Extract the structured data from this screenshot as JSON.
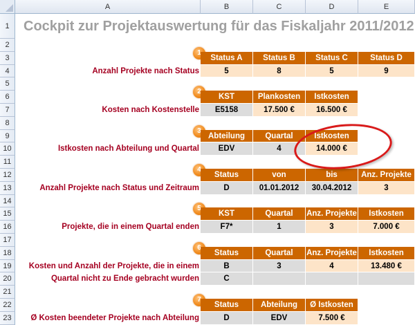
{
  "columns": [
    "A",
    "B",
    "C",
    "D",
    "E"
  ],
  "row_numbers": [
    "1",
    "2",
    "3",
    "4",
    "5",
    "6",
    "7",
    "8",
    "9",
    "10",
    "11",
    "12",
    "13",
    "14",
    "15",
    "16",
    "17",
    "18",
    "19",
    "20",
    "21",
    "22",
    "23"
  ],
  "title": "Cockpit zur Projektauswertung für das Fiskaljahr 2011/2012",
  "highlight_color": "#d91a1a",
  "sections": [
    {
      "badge": "1",
      "header_row": 3,
      "headers": [
        "Status A",
        "Status B",
        "Status C",
        "Status D"
      ],
      "rows": [
        {
          "row": 4,
          "label": "Anzahl  Projekte nach Status",
          "cells": [
            {
              "text": "5",
              "kind": "value"
            },
            {
              "text": "8",
              "kind": "value"
            },
            {
              "text": "5",
              "kind": "value"
            },
            {
              "text": "9",
              "kind": "value"
            }
          ]
        }
      ]
    },
    {
      "badge": "2",
      "header_row": 6,
      "headers": [
        "KST",
        "Plankosten",
        "Istkosten"
      ],
      "rows": [
        {
          "row": 7,
          "label": "Kosten nach Kostenstelle",
          "cells": [
            {
              "text": "E5158",
              "kind": "input"
            },
            {
              "text": "17.500 €",
              "kind": "value"
            },
            {
              "text": "16.500 €",
              "kind": "value"
            }
          ]
        }
      ]
    },
    {
      "badge": "3",
      "header_row": 9,
      "headers": [
        "Abteilung",
        "Quartal",
        "Istkosten"
      ],
      "rows": [
        {
          "row": 10,
          "label": "Istkosten nach Abteilung und Quartal",
          "cells": [
            {
              "text": "EDV",
              "kind": "input"
            },
            {
              "text": "4",
              "kind": "input"
            },
            {
              "text": "14.000 €",
              "kind": "value"
            }
          ]
        }
      ]
    },
    {
      "badge": "4",
      "header_row": 12,
      "headers": [
        "Status",
        "von",
        "bis",
        "Anz. Projekte"
      ],
      "rows": [
        {
          "row": 13,
          "label": "Anzahl Projekte nach Status und Zeitraum",
          "cells": [
            {
              "text": "D",
              "kind": "input"
            },
            {
              "text": "01.01.2012",
              "kind": "input"
            },
            {
              "text": "30.04.2012",
              "kind": "input"
            },
            {
              "text": "3",
              "kind": "value"
            }
          ]
        }
      ]
    },
    {
      "badge": "5",
      "header_row": 15,
      "headers": [
        "KST",
        "Quartal",
        "Anz. Projekte",
        "Istkosten"
      ],
      "rows": [
        {
          "row": 16,
          "label": "Projekte, die in einem Quartal enden",
          "cells": [
            {
              "text": "F7*",
              "kind": "input"
            },
            {
              "text": "1",
              "kind": "input"
            },
            {
              "text": "3",
              "kind": "value"
            },
            {
              "text": "7.000 €",
              "kind": "value"
            }
          ]
        }
      ]
    },
    {
      "badge": "6",
      "header_row": 18,
      "headers": [
        "Status",
        "Quartal",
        "Anz. Projekte",
        "Istkosten"
      ],
      "rows": [
        {
          "row": 19,
          "label": "Kosten und Anzahl der Projekte, die in einem",
          "cells": [
            {
              "text": "B",
              "kind": "input"
            },
            {
              "text": "3",
              "kind": "input"
            },
            {
              "text": "4",
              "kind": "value"
            },
            {
              "text": "13.480 €",
              "kind": "value"
            }
          ]
        },
        {
          "row": 20,
          "label": "Quartal nicht zu Ende gebracht wurden",
          "cells": [
            {
              "text": "C",
              "kind": "input"
            },
            {
              "text": "",
              "kind": "input"
            },
            {
              "text": "",
              "kind": "input"
            },
            {
              "text": "",
              "kind": "input"
            }
          ]
        }
      ]
    },
    {
      "badge": "7",
      "header_row": 22,
      "headers": [
        "Status",
        "Abteilung",
        "Ø Istkosten"
      ],
      "rows": [
        {
          "row": 23,
          "label": "Ø Kosten beendeter Projekte nach Abteilung",
          "cells": [
            {
              "text": "D",
              "kind": "input"
            },
            {
              "text": "EDV",
              "kind": "input"
            },
            {
              "text": "7.500 €",
              "kind": "value"
            }
          ]
        }
      ]
    }
  ]
}
